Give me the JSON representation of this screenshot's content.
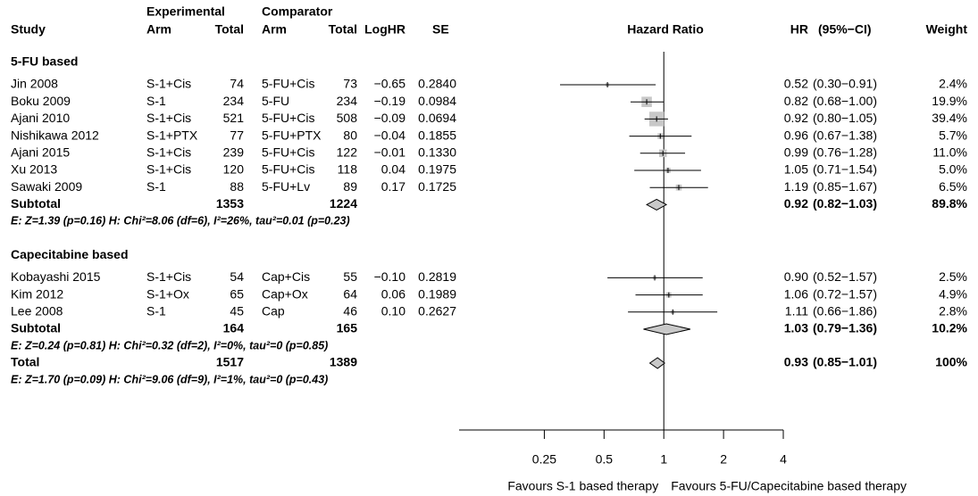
{
  "chart_data": {
    "type": "forest",
    "headers": {
      "study": "Study",
      "exp_group": "Experimental",
      "exp_arm": "Arm",
      "exp_total": "Total",
      "comp_group": "Comparator",
      "comp_arm": "Arm",
      "comp_total": "Total",
      "loghr": "LogHR",
      "se": "SE",
      "plot": "Hazard Ratio",
      "hr": "HR",
      "ci": "(95%−CI)",
      "weight": "Weight"
    },
    "groups": [
      {
        "name": "5-FU based",
        "studies": [
          {
            "study": "Jin 2008",
            "exp_arm": "S-1+Cis",
            "exp_total": 74,
            "comp_arm": "5-FU+Cis",
            "comp_total": 73,
            "loghr": "−0.65",
            "se": "0.2840",
            "hr": 0.52,
            "ci": [
              0.3,
              0.91
            ],
            "ci_label": "(0.30−0.91)",
            "weight": 2.4,
            "weight_label": "2.4%"
          },
          {
            "study": "Boku 2009",
            "exp_arm": "S-1",
            "exp_total": 234,
            "comp_arm": "5-FU",
            "comp_total": 234,
            "loghr": "−0.19",
            "se": "0.0984",
            "hr": 0.82,
            "ci": [
              0.68,
              1.0
            ],
            "ci_label": "(0.68−1.00)",
            "weight": 19.9,
            "weight_label": "19.9%"
          },
          {
            "study": "Ajani 2010",
            "exp_arm": "S-1+Cis",
            "exp_total": 521,
            "comp_arm": "5-FU+Cis",
            "comp_total": 508,
            "loghr": "−0.09",
            "se": "0.0694",
            "hr": 0.92,
            "ci": [
              0.8,
              1.05
            ],
            "ci_label": "(0.80−1.05)",
            "weight": 39.4,
            "weight_label": "39.4%"
          },
          {
            "study": "Nishikawa 2012",
            "exp_arm": "S-1+PTX",
            "exp_total": 77,
            "comp_arm": "5-FU+PTX",
            "comp_total": 80,
            "loghr": "−0.04",
            "se": "0.1855",
            "hr": 0.96,
            "ci": [
              0.67,
              1.38
            ],
            "ci_label": "(0.67−1.38)",
            "weight": 5.7,
            "weight_label": "5.7%"
          },
          {
            "study": "Ajani 2015",
            "exp_arm": "S-1+Cis",
            "exp_total": 239,
            "comp_arm": "5-FU+Cis",
            "comp_total": 122,
            "loghr": "−0.01",
            "se": "0.1330",
            "hr": 0.99,
            "ci": [
              0.76,
              1.28
            ],
            "ci_label": "(0.76−1.28)",
            "weight": 11.0,
            "weight_label": "11.0%"
          },
          {
            "study": "Xu 2013",
            "exp_arm": "S-1+Cis",
            "exp_total": 120,
            "comp_arm": "5-FU+Cis",
            "comp_total": 118,
            "loghr": "0.04",
            "se": "0.1975",
            "hr": 1.05,
            "ci": [
              0.71,
              1.54
            ],
            "ci_label": "(0.71−1.54)",
            "weight": 5.0,
            "weight_label": "5.0%"
          },
          {
            "study": "Sawaki 2009",
            "exp_arm": "S-1",
            "exp_total": 88,
            "comp_arm": "5-FU+Lv",
            "comp_total": 89,
            "loghr": "0.17",
            "se": "0.1725",
            "hr": 1.19,
            "ci": [
              0.85,
              1.67
            ],
            "ci_label": "(0.85−1.67)",
            "weight": 6.5,
            "weight_label": "6.5%"
          }
        ],
        "subtotal": {
          "label": "Subtotal",
          "exp_total": 1353,
          "comp_total": 1224,
          "hr": 0.92,
          "ci": [
            0.82,
            1.03
          ],
          "ci_label": "(0.82−1.03)",
          "weight": 89.8,
          "weight_label": "89.8%",
          "test": "E: Z=1.39 (p=0.16) H: Chi²=8.06 (df=6), I²=26%, tau²=0.01 (p=0.23)"
        }
      },
      {
        "name": "Capecitabine based",
        "studies": [
          {
            "study": "Kobayashi 2015",
            "exp_arm": "S-1+Cis",
            "exp_total": 54,
            "comp_arm": "Cap+Cis",
            "comp_total": 55,
            "loghr": "−0.10",
            "se": "0.2819",
            "hr": 0.9,
            "hr_label": "0.90",
            "ci": [
              0.52,
              1.57
            ],
            "ci_label": "(0.52−1.57)",
            "weight": 2.5,
            "weight_label": "2.5%"
          },
          {
            "study": "Kim 2012",
            "exp_arm": "S-1+Ox",
            "exp_total": 65,
            "comp_arm": "Cap+Ox",
            "comp_total": 64,
            "loghr": "0.06",
            "se": "0.1989",
            "hr": 1.06,
            "ci": [
              0.72,
              1.57
            ],
            "ci_label": "(0.72−1.57)",
            "weight": 4.9,
            "weight_label": "4.9%"
          },
          {
            "study": "Lee 2008",
            "exp_arm": "S-1",
            "exp_total": 45,
            "comp_arm": "Cap",
            "comp_total": 46,
            "loghr": "0.10",
            "se": "0.2627",
            "hr": 1.11,
            "ci": [
              0.66,
              1.86
            ],
            "ci_label": "(0.66−1.86)",
            "weight": 2.8,
            "weight_label": "2.8%"
          }
        ],
        "subtotal": {
          "label": "Subtotal",
          "exp_total": 164,
          "comp_total": 165,
          "hr": 1.03,
          "ci": [
            0.79,
            1.36
          ],
          "ci_label": "(0.79−1.36)",
          "weight": 10.2,
          "weight_label": "10.2%",
          "test": "E: Z=0.24 (p=0.81) H: Chi²=0.32 (df=2), I²=0%, tau²=0 (p=0.85)"
        }
      }
    ],
    "total": {
      "label": "Total",
      "exp_total": 1517,
      "comp_total": 1389,
      "hr": 0.93,
      "ci": [
        0.85,
        1.01
      ],
      "ci_label": "(0.85−1.01)",
      "weight": 100,
      "weight_label": "100%",
      "test": "E: Z=1.70 (p=0.09) H: Chi²=9.06 (df=9), I²=1%, tau²=0 (p=0.43)"
    },
    "xlim": [
      0.093,
      4
    ],
    "xticks": [
      0.25,
      0.5,
      1,
      2,
      4
    ],
    "log_x": true,
    "reference": 1,
    "favours": [
      "Favours S-1 based therapy",
      "Favours 5-FU/Capecitabine based therapy"
    ],
    "square_color": "#c8c8c8",
    "line_color": "#000000"
  }
}
